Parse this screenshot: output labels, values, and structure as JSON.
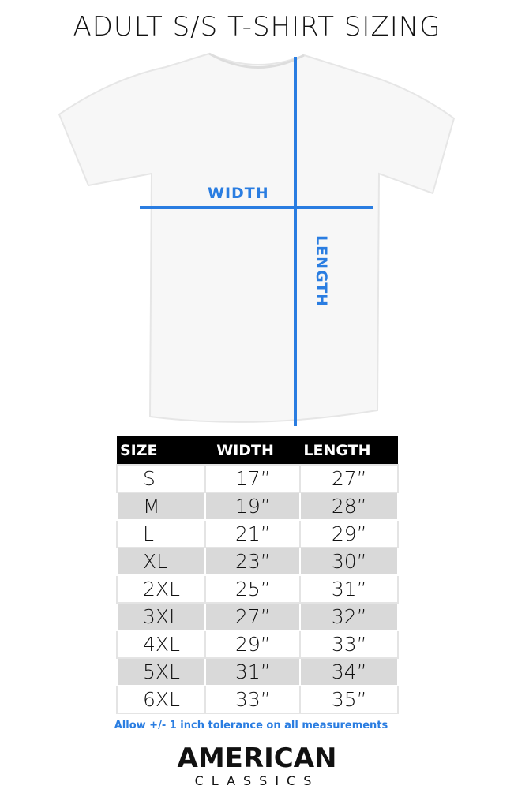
{
  "title": "ADULT S/S T-SHIRT SIZING",
  "diagram": {
    "width_label": "WIDTH",
    "length_label": "LENGTH",
    "line_color": "#2a7de1"
  },
  "table": {
    "headers": [
      "SIZE",
      "WIDTH",
      "LENGTH"
    ],
    "rows": [
      [
        "S",
        "17”",
        "27”"
      ],
      [
        "M",
        "19”",
        "28”"
      ],
      [
        "L",
        "21”",
        "29”"
      ],
      [
        "XL",
        "23”",
        "30”"
      ],
      [
        "2XL",
        "25”",
        "31”"
      ],
      [
        "3XL",
        "27”",
        "32”"
      ],
      [
        "4XL",
        "29”",
        "33”"
      ],
      [
        "5XL",
        "31”",
        "34”"
      ],
      [
        "6XL",
        "33”",
        "35”"
      ]
    ]
  },
  "note": "Allow +/- 1 inch tolerance on all measurements",
  "brand": {
    "line1": "AMERICAN",
    "line2": "CLASSICS"
  }
}
